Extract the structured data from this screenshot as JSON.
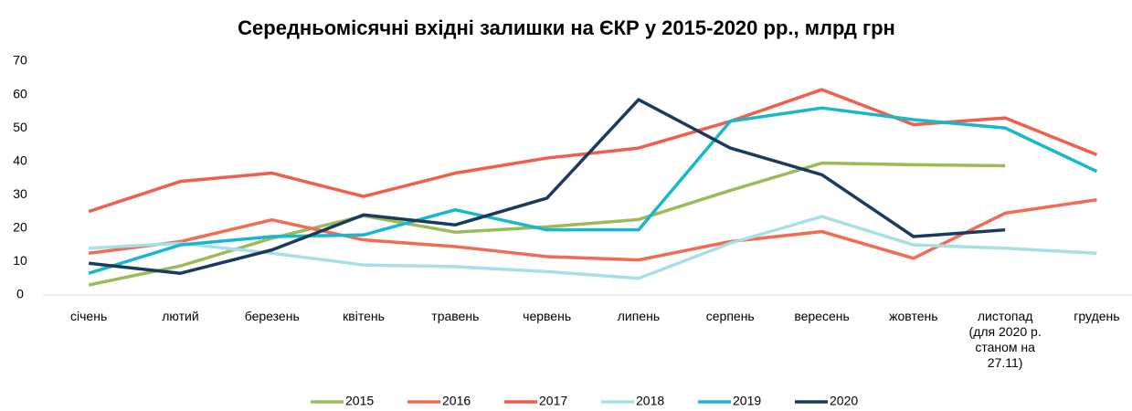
{
  "chart_data": {
    "type": "line",
    "title": "Середньомісячні вхідні залишки на ЄКР у 2015-2020 рр., млрд грн",
    "categories": [
      "січень",
      "лютий",
      "березень",
      "квітень",
      "травень",
      "червень",
      "липень",
      "серпень",
      "вересень",
      "жовтень",
      "листопад (для 2020 р. станом на 27.11)",
      "грудень"
    ],
    "series": [
      {
        "name": "2015",
        "color": "#9bbb59",
        "values": [
          3,
          8.7,
          17,
          23.7,
          18.8,
          20.4,
          22.6,
          31.3,
          39.5,
          39,
          38.7,
          null
        ]
      },
      {
        "name": "2016",
        "color": "#f26b55",
        "values": [
          12.5,
          16,
          22.5,
          16.5,
          14.5,
          11.5,
          10.5,
          16,
          19,
          11,
          24.5,
          28.5
        ]
      },
      {
        "name": "2017",
        "color": "#ef5f4c",
        "values": [
          25,
          34,
          36.5,
          29.5,
          36.5,
          41,
          44,
          52,
          61.5,
          51,
          53,
          42
        ]
      },
      {
        "name": "2018",
        "color": "#a6dfe6",
        "values": [
          14,
          15.5,
          12.5,
          9,
          8.5,
          7,
          5,
          15.5,
          23.5,
          15,
          14,
          12.5
        ]
      },
      {
        "name": "2019",
        "color": "#17b8cc",
        "values": [
          6.5,
          15,
          17.5,
          18,
          25.5,
          19.5,
          19.5,
          52,
          56,
          52.5,
          50,
          37
        ]
      },
      {
        "name": "2020",
        "color": "#1b3a5e",
        "values": [
          9.5,
          6.5,
          13.5,
          24,
          21,
          29,
          58.5,
          44,
          36,
          17.5,
          19.5,
          null
        ]
      }
    ],
    "ylim": [
      0,
      70
    ],
    "yticks": [
      0,
      10,
      20,
      30,
      40,
      50,
      60,
      70
    ],
    "legend": "bottom"
  }
}
